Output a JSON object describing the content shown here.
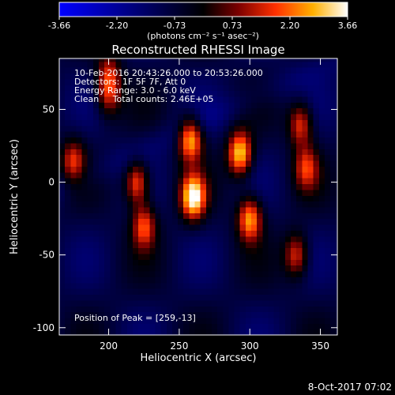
{
  "chart_data": {
    "type": "heatmap",
    "title": "Reconstructed RHESSI Image",
    "xlabel": "Heliocentric X (arcsec)",
    "ylabel": "Heliocentric Y (arcsec)",
    "xlim": [
      165,
      362
    ],
    "ylim": [
      -105,
      85
    ],
    "x_ticks": [
      200,
      250,
      300,
      350
    ],
    "y_ticks": [
      50,
      0,
      -50,
      -100
    ],
    "colorbar": {
      "unit_label": "(photons cm⁻² s⁻¹ asec⁻²)",
      "min": -3.66,
      "max": 3.66,
      "ticks": [
        "-3.66",
        "-2.20",
        "-0.73",
        "0.73",
        "2.20",
        "3.66"
      ],
      "colormap": [
        "#0000ff",
        "#000000",
        "#7a0000",
        "#ff3000",
        "#ffb000",
        "#ffffff"
      ]
    },
    "annotations": [
      "10-Feb-2016 20:43:26.000 to 20:53:26.000",
      "Detectors: 1F 5F 7F, Att 0",
      "Energy Range: 3.0 - 6.0 keV",
      "Clean     Total counts: 2.46E+05"
    ],
    "peak_label": "Position of Peak = [259,-13]",
    "peak": {
      "x": 259,
      "y": -13
    },
    "grid": false,
    "sources": [
      {
        "x": 258,
        "y": 30,
        "peak": 3.0
      },
      {
        "x": 260,
        "y": -10,
        "peak": 3.66
      },
      {
        "x": 293,
        "y": 20,
        "peak": 3.2
      },
      {
        "x": 300,
        "y": -25,
        "peak": 2.7
      },
      {
        "x": 220,
        "y": 0,
        "peak": 2.3
      },
      {
        "x": 225,
        "y": -30,
        "peak": 1.9
      },
      {
        "x": 175,
        "y": 15,
        "peak": 1.5
      },
      {
        "x": 336,
        "y": 40,
        "peak": 1.8
      },
      {
        "x": 340,
        "y": 10,
        "peak": 1.5
      },
      {
        "x": 333,
        "y": -50,
        "peak": 1.7
      },
      {
        "x": 200,
        "y": 60,
        "peak": 1.2
      },
      {
        "x": 200,
        "y": 75,
        "peak": 1.1
      }
    ]
  },
  "footer_date": "8-Oct-2017 07:02"
}
